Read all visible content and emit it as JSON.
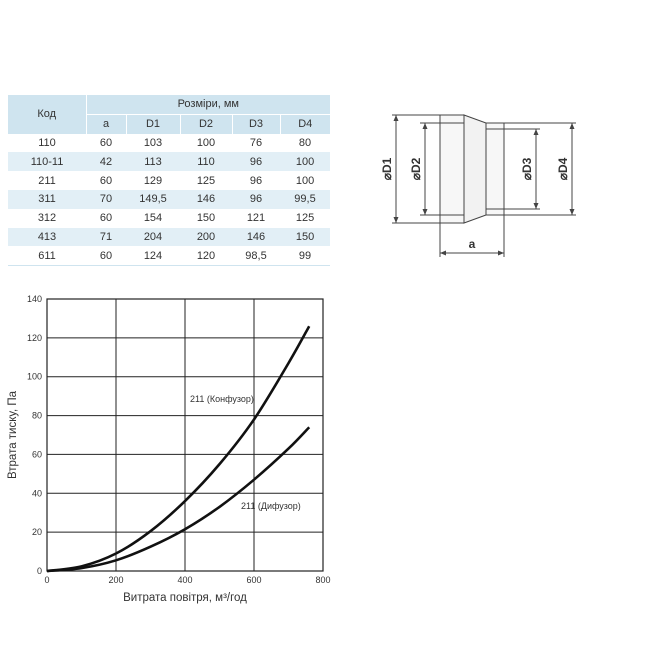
{
  "table": {
    "code_header": "Код",
    "group_header": "Розміри, мм",
    "columns": [
      "a",
      "D1",
      "D2",
      "D3",
      "D4"
    ],
    "rows": [
      {
        "code": "110",
        "values": [
          "60",
          "103",
          "100",
          "76",
          "80"
        ]
      },
      {
        "code": "110-11",
        "values": [
          "42",
          "113",
          "110",
          "96",
          "100"
        ]
      },
      {
        "code": "211",
        "values": [
          "60",
          "129",
          "125",
          "96",
          "100"
        ]
      },
      {
        "code": "311",
        "values": [
          "70",
          "149,5",
          "146",
          "96",
          "99,5"
        ]
      },
      {
        "code": "312",
        "values": [
          "60",
          "154",
          "150",
          "121",
          "125"
        ]
      },
      {
        "code": "413",
        "values": [
          "71",
          "204",
          "200",
          "146",
          "150"
        ]
      },
      {
        "code": "611",
        "values": [
          "60",
          "124",
          "120",
          "98,5",
          "99"
        ]
      }
    ]
  },
  "drawing": {
    "d1_label": "⌀D1",
    "d2_label": "⌀D2",
    "d3_label": "⌀D3",
    "d4_label": "⌀D4",
    "a_label": "a"
  },
  "chart_data": {
    "type": "line",
    "xlabel": "Витрата повітря, м³/год",
    "ylabel": "Втрата тиску, Па",
    "xlim": [
      0,
      800
    ],
    "ylim": [
      0,
      140
    ],
    "x_ticks": [
      0,
      200,
      400,
      600,
      800
    ],
    "y_ticks": [
      0,
      20,
      40,
      60,
      80,
      100,
      120,
      140
    ],
    "grid": true,
    "series": [
      {
        "name": "211 (Конфузор)",
        "x": [
          0,
          100,
          200,
          300,
          400,
          500,
          600,
          700,
          760
        ],
        "y": [
          0,
          2.4,
          9.0,
          20.5,
          36,
          55,
          78,
          107,
          126
        ]
      },
      {
        "name": "211 (Дифузор)",
        "x": [
          0,
          100,
          200,
          300,
          400,
          500,
          600,
          700,
          760
        ],
        "y": [
          0,
          1.5,
          5.5,
          12.5,
          21.5,
          33,
          47,
          63,
          74
        ]
      }
    ]
  }
}
